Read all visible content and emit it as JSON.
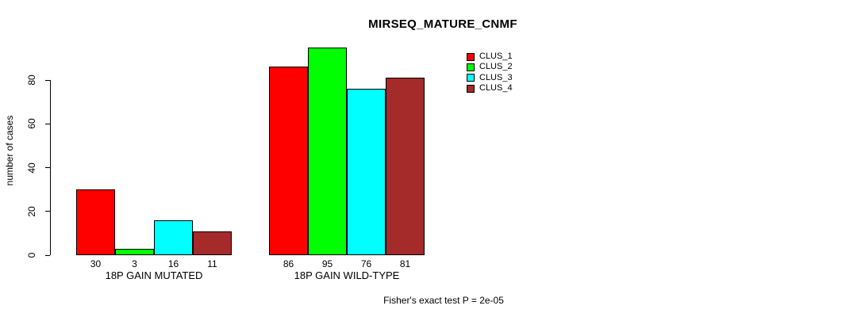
{
  "page": {
    "background": "#ffffff"
  },
  "chart_data": {
    "type": "bar",
    "title": "MIRSEQ_MATURE_CNMF",
    "ylabel": "number of cases",
    "xlabel": "",
    "categories": [
      "18P GAIN MUTATED",
      "18P GAIN WILD-TYPE"
    ],
    "series": [
      {
        "name": "CLUS_1",
        "color": "#FF0000",
        "values": [
          30,
          86
        ]
      },
      {
        "name": "CLUS_2",
        "color": "#00FF00",
        "values": [
          3,
          95
        ]
      },
      {
        "name": "CLUS_3",
        "color": "#00FFFF",
        "values": [
          16,
          76
        ]
      },
      {
        "name": "CLUS_4",
        "color": "#A52A2A",
        "values": [
          11,
          81
        ]
      }
    ],
    "yticks": [
      0,
      20,
      40,
      60,
      80
    ],
    "ylim": [
      0,
      95
    ],
    "grid": false,
    "bar_value_labels_shown": true,
    "legend_position": "top-right",
    "annotation": "Fisher's exact test P = 2e-05"
  }
}
